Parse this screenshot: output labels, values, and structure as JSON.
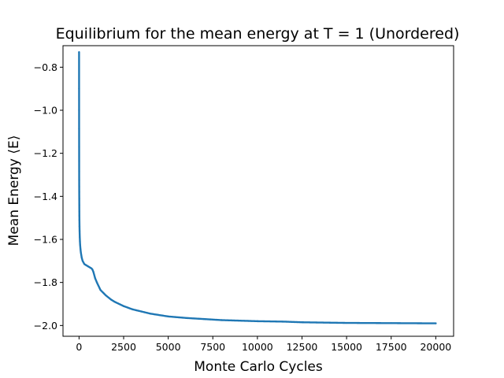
{
  "chart_data": {
    "type": "scatter",
    "title": "Equilibrium for the mean energy at T = 1 (Unordered)",
    "xlabel": "Monte Carlo Cycles",
    "ylabel": "Mean Energy ⟨E⟩",
    "xlim": [
      -900,
      21000
    ],
    "ylim": [
      -2.05,
      -0.7
    ],
    "xticks": [
      0,
      2500,
      5000,
      7500,
      10000,
      12500,
      15000,
      17500,
      20000
    ],
    "yticks": [
      -0.8,
      -1.0,
      -1.2,
      -1.4,
      -1.6,
      -1.8,
      -2.0
    ],
    "grid": false,
    "legend": "none",
    "colors": {
      "series": "#1f77b4"
    },
    "series": [
      {
        "x": [
          1,
          2,
          3,
          4,
          5,
          6,
          7,
          8,
          9,
          10,
          12,
          14,
          16,
          18,
          20,
          25,
          30,
          40,
          50,
          60,
          80,
          100,
          150,
          200,
          300,
          400,
          500,
          600,
          700,
          750,
          800,
          900,
          1000,
          1200,
          1500,
          1800,
          2000,
          2500,
          3000,
          4000,
          5000,
          6000,
          7000,
          8000,
          10000,
          11500,
          12500,
          15000,
          17500,
          20000
        ],
        "y": [
          -0.73,
          -0.9,
          -1.0,
          -1.085,
          -1.17,
          -1.235,
          -1.285,
          -1.325,
          -1.355,
          -1.38,
          -1.41,
          -1.44,
          -1.47,
          -1.49,
          -1.51,
          -1.54,
          -1.56,
          -1.59,
          -1.61,
          -1.625,
          -1.645,
          -1.66,
          -1.685,
          -1.7,
          -1.715,
          -1.72,
          -1.725,
          -1.73,
          -1.735,
          -1.74,
          -1.75,
          -1.78,
          -1.8,
          -1.835,
          -1.86,
          -1.88,
          -1.89,
          -1.91,
          -1.925,
          -1.945,
          -1.958,
          -1.965,
          -1.97,
          -1.975,
          -1.98,
          -1.982,
          -1.985,
          -1.988,
          -1.989,
          -1.99
        ]
      }
    ]
  }
}
